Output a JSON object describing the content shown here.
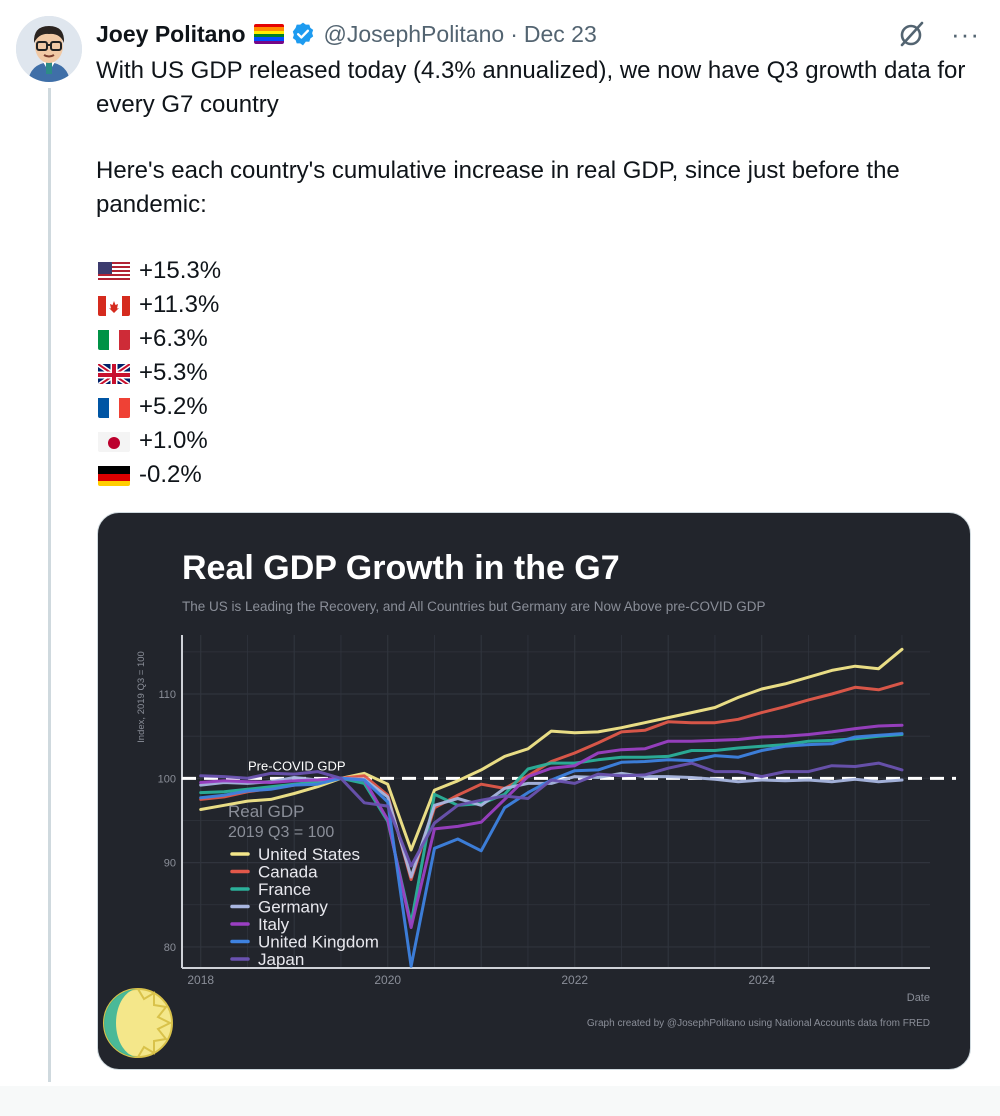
{
  "author": {
    "name": "Joey Politano",
    "handle": "@JosephPolitano",
    "date_sep": "·",
    "date": "Dec 23"
  },
  "icons": {
    "avatar": "cartoon-avatar",
    "pride_flag": "rainbow-flag-icon",
    "verified": "verified-badge-icon",
    "grok": "grok-icon",
    "more": "more-icon",
    "logo": "sun-logo"
  },
  "tweet": {
    "line1": "With US GDP released today (4.3% annualized), we now have Q3 growth data for every G7 country",
    "line2": "Here's each country's cumulative increase in real GDP, since just before the pandemic:",
    "stats": [
      {
        "flag": "us-flag-icon",
        "value": "+15.3%"
      },
      {
        "flag": "canada-flag-icon",
        "value": "+11.3%"
      },
      {
        "flag": "italy-flag-icon",
        "value": "+6.3%"
      },
      {
        "flag": "uk-flag-icon",
        "value": "+5.3%"
      },
      {
        "flag": "france-flag-icon",
        "value": "+5.2%"
      },
      {
        "flag": "japan-flag-icon",
        "value": "+1.0%"
      },
      {
        "flag": "germany-flag-icon",
        "value": "-0.2%"
      }
    ]
  },
  "colors": {
    "chart_bg": "#22252c",
    "grid": "#30343d",
    "axis": "#cfd2d8",
    "text_muted": "#8a8e98",
    "united_states": "#f4e78a",
    "canada": "#e2584a",
    "france": "#2bb09a",
    "germany": "#a9b6e0",
    "italy": "#9b3fc3",
    "united_kingdom": "#3e82e0",
    "japan": "#6a52b0"
  },
  "chart_data": {
    "type": "line",
    "title": "Real GDP Growth in the G7",
    "subtitle": "The US is Leading the Recovery, and All Countries but Germany are Now Above pre-COVID GDP",
    "ylabel": "Index, 2019 Q3 = 100",
    "xlabel": "Date",
    "xlim": [
      2017.8,
      2025.8
    ],
    "ylim": [
      77.5,
      117
    ],
    "xticks": [
      2018,
      2020,
      2022,
      2024
    ],
    "yticks": [
      80,
      90,
      100,
      110
    ],
    "grid": true,
    "reference_line": {
      "y": 100,
      "label": "Pre-COVID GDP"
    },
    "legend_title": "Real GDP",
    "legend_subtitle": "2019 Q3 = 100",
    "legend_position": "bottom-left",
    "credit": "Graph created by @JosephPolitano using National Accounts data from FRED",
    "x": [
      2018.0,
      2018.25,
      2018.5,
      2018.75,
      2019.0,
      2019.25,
      2019.5,
      2019.75,
      2020.0,
      2020.25,
      2020.5,
      2020.75,
      2021.0,
      2021.25,
      2021.5,
      2021.75,
      2022.0,
      2022.25,
      2022.5,
      2022.75,
      2023.0,
      2023.25,
      2023.5,
      2023.75,
      2024.0,
      2024.25,
      2024.5,
      2024.75,
      2025.0,
      2025.25,
      2025.5
    ],
    "series": [
      {
        "name": "United States",
        "values": [
          96.3,
          96.8,
          97.3,
          97.5,
          98.2,
          99.0,
          100.0,
          100.6,
          99.3,
          91.5,
          98.6,
          99.7,
          101.0,
          102.6,
          103.5,
          105.6,
          105.4,
          105.5,
          106.0,
          106.6,
          107.2,
          107.8,
          108.4,
          109.6,
          110.6,
          111.2,
          112.0,
          112.8,
          113.3,
          113.0,
          115.3
        ]
      },
      {
        "name": "Canada",
        "values": [
          97.5,
          97.8,
          98.4,
          98.8,
          99.2,
          99.6,
          100.0,
          100.3,
          98.0,
          88.0,
          96.5,
          98.0,
          99.3,
          98.8,
          100.3,
          102.0,
          103.0,
          104.2,
          105.5,
          105.7,
          106.7,
          106.6,
          106.6,
          107.0,
          107.8,
          108.5,
          109.3,
          110.0,
          110.8,
          110.5,
          111.3
        ]
      },
      {
        "name": "France",
        "values": [
          98.3,
          98.4,
          98.7,
          99.0,
          99.3,
          99.6,
          100.0,
          99.4,
          94.9,
          82.8,
          98.1,
          96.8,
          97.0,
          98.1,
          101.1,
          101.8,
          101.8,
          102.2,
          102.5,
          102.5,
          102.6,
          103.3,
          103.3,
          103.6,
          103.8,
          104.0,
          104.4,
          104.5,
          104.7,
          105.0,
          105.2
        ]
      },
      {
        "name": "Germany",
        "values": [
          99.2,
          99.5,
          99.4,
          99.6,
          100.1,
          99.8,
          100.0,
          99.9,
          97.8,
          88.3,
          96.8,
          97.6,
          96.8,
          98.8,
          99.4,
          99.4,
          100.2,
          100.1,
          100.6,
          100.2,
          100.2,
          100.1,
          99.9,
          99.6,
          99.8,
          99.7,
          99.8,
          99.6,
          99.9,
          99.6,
          99.8
        ]
      },
      {
        "name": "Italy",
        "values": [
          99.5,
          99.7,
          99.6,
          99.5,
          99.7,
          99.8,
          100.0,
          99.8,
          95.1,
          82.3,
          94.0,
          94.3,
          94.8,
          97.5,
          100.2,
          101.2,
          101.5,
          103.0,
          103.4,
          103.5,
          104.4,
          104.4,
          104.5,
          104.6,
          104.9,
          105.0,
          105.2,
          105.5,
          105.9,
          106.2,
          106.3
        ]
      },
      {
        "name": "United Kingdom",
        "values": [
          97.7,
          98.0,
          98.5,
          98.7,
          99.2,
          99.3,
          100.0,
          99.8,
          97.2,
          77.7,
          91.7,
          92.8,
          91.4,
          96.5,
          98.3,
          99.8,
          100.9,
          101.0,
          101.9,
          102.0,
          102.2,
          102.1,
          102.7,
          102.5,
          103.3,
          103.8,
          104.0,
          104.1,
          104.9,
          105.1,
          105.3
        ]
      },
      {
        "name": "Japan",
        "values": [
          100.3,
          100.2,
          100.0,
          100.6,
          100.5,
          100.8,
          100.0,
          97.1,
          96.7,
          89.6,
          94.7,
          96.8,
          97.4,
          97.9,
          97.6,
          99.8,
          99.4,
          100.5,
          100.3,
          100.4,
          101.2,
          101.8,
          100.8,
          100.8,
          100.2,
          100.8,
          100.8,
          101.5,
          101.4,
          101.8,
          101.0
        ]
      }
    ]
  }
}
